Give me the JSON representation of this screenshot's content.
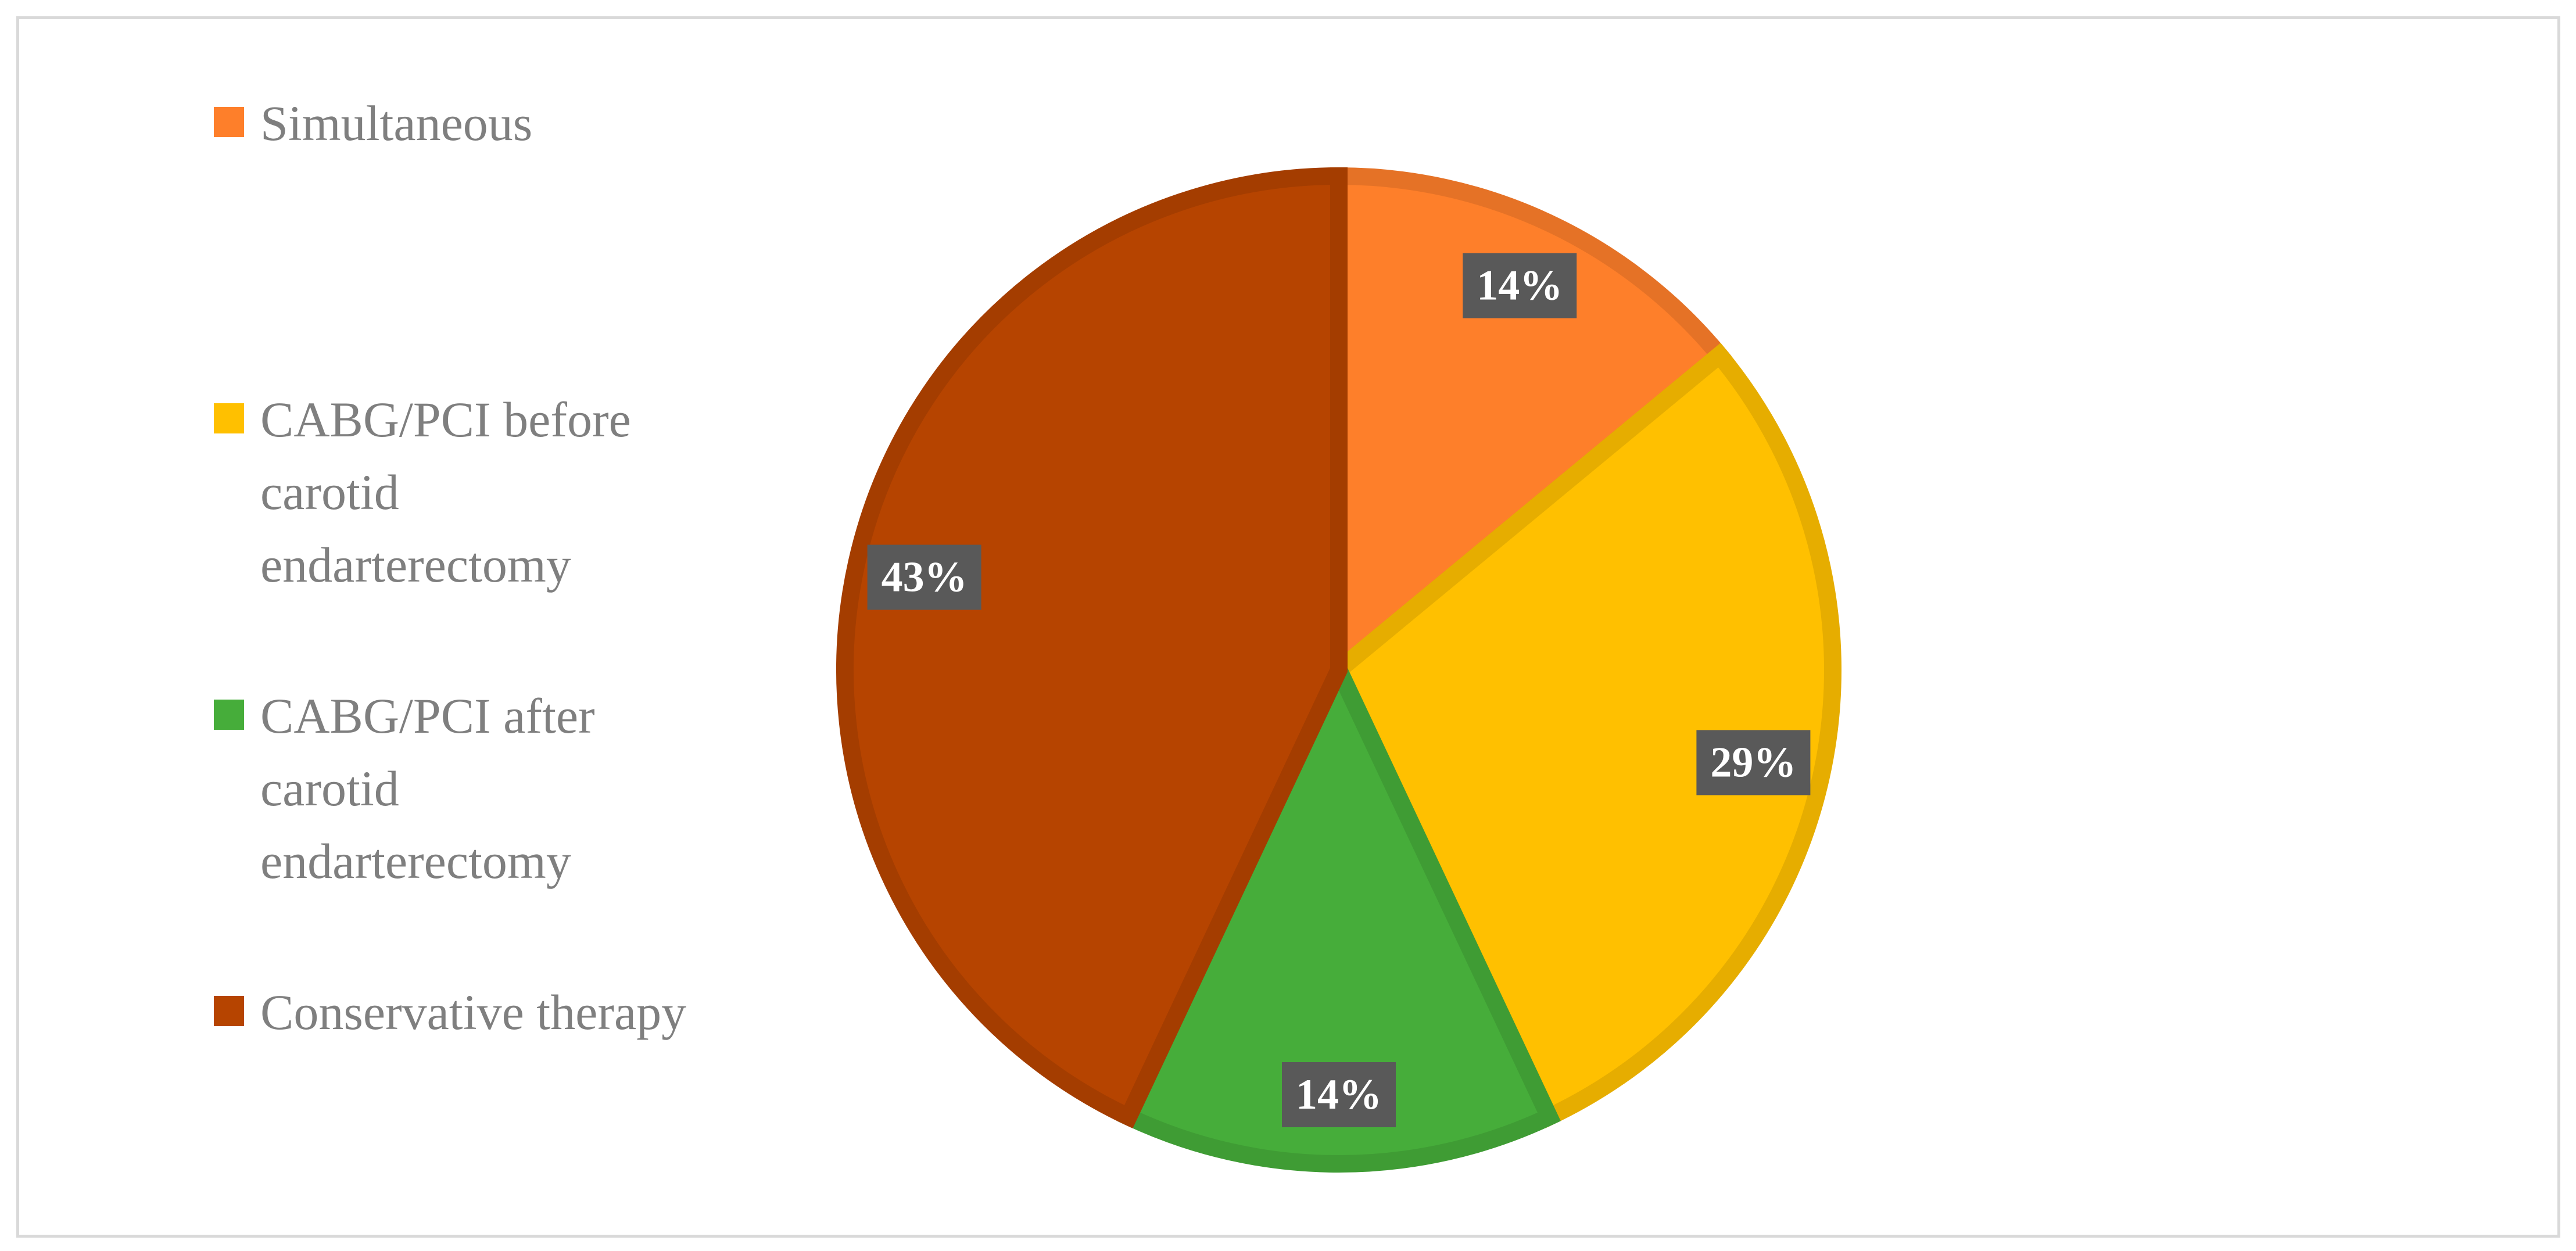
{
  "chart_data": {
    "type": "pie",
    "categories": [
      "Simultaneous",
      "CABG/PCI before carotid endarterectomy",
      "CABG/PCI after carotid endarterectomy",
      "Conservative therapy"
    ],
    "values": [
      14,
      29,
      14,
      43
    ],
    "value_labels": [
      "14%",
      "29%",
      "14%",
      "43%"
    ],
    "colors": [
      "#fe7f2a",
      "#ffc000",
      "#46ad3a",
      "#b64400"
    ],
    "legend": "left"
  }
}
